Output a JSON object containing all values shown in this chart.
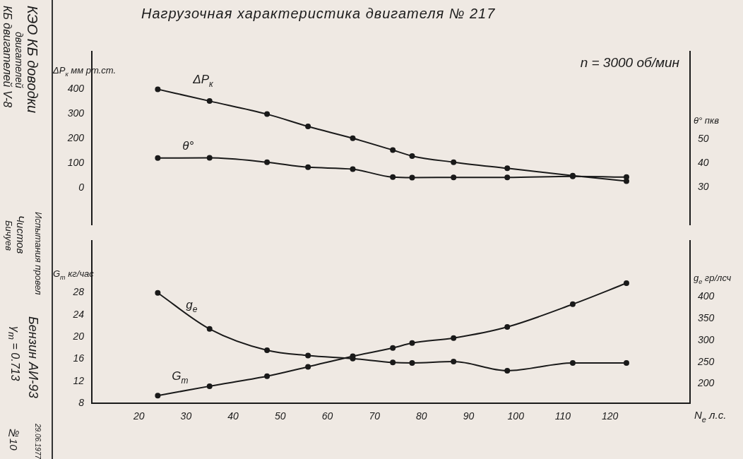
{
  "chart_data": [
    {
      "type": "line",
      "title": "Нагрузочная характеристика двигателя № 217",
      "ylabel": "ΔP$_{к}$ мм рт.ст.",
      "y2label": "θ° пкв",
      "x": [
        24,
        35,
        47.2,
        55.9,
        65.4,
        73.9,
        78,
        86.8,
        98.2,
        112.1,
        123.5
      ],
      "xlim": [
        10,
        137
      ],
      "tick_labels": "y",
      "ylim": [
        -151,
        553
      ],
      "yticks": [
        0,
        100,
        200,
        300,
        400
      ],
      "y2lim": [
        14.4,
        86.2
      ],
      "y2ticks": [
        30,
        40,
        50
      ],
      "series": [
        {
          "name": "ΔP$_{к}$",
          "color": "#1a1a1a",
          "values": [
            400,
            352,
            299,
            249,
            201,
            153,
            129,
            104,
            79,
            49,
            27
          ]
        },
        {
          "name": "θ°",
          "color": "#1a1a1a",
          "axis": "y2",
          "values": [
            42.1,
            42.2,
            40.4,
            38.3,
            37.5,
            34.2,
            34,
            34.1,
            34.1,
            34.5,
            34.2
          ]
        }
      ],
      "marker": "circle",
      "line_style": "solid",
      "annotations": [
        "n = 3000 об/мин",
        "КЭО КБ доводки",
        "двигателей",
        "КБ двигателей V-8",
        "Испытания провел",
        "Чистов",
        "Бичуев",
        "Бензин АИ-93",
        "γ$_{т}$ = 0.713",
        "29.06.1977",
        "№10"
      ]
    },
    {
      "type": "line",
      "xlabel": "N$_{e}$ л.с.",
      "ylabel": "G$_{т}$ кг/час",
      "y2label": "g$_{e}$ гр/лсч",
      "x": [
        24,
        35,
        47.2,
        55.9,
        65.4,
        73.9,
        78,
        86.8,
        98.2,
        112.1,
        123.5
      ],
      "xlim": [
        10,
        137
      ],
      "xticks": [
        20,
        30,
        40,
        50,
        60,
        70,
        80,
        90,
        100,
        110,
        120
      ],
      "ylim": [
        8,
        37.3
      ],
      "yticks": [
        8,
        12,
        16,
        20,
        24,
        28
      ],
      "y2lim": [
        155,
        528
      ],
      "y2ticks": [
        200,
        250,
        300,
        350,
        400
      ],
      "series": [
        {
          "name": "g$_{e}$",
          "color": "#1a1a1a",
          "axis": "y2",
          "values": [
            409,
            326,
            277,
            265,
            258,
            249,
            248,
            251,
            230,
            248,
            248
          ]
        },
        {
          "name": "G$_{т}$",
          "color": "#1a1a1a",
          "values": [
            9.4,
            11.1,
            12.9,
            14.6,
            16.5,
            18,
            18.9,
            19.8,
            21.8,
            25.9,
            29.7
          ]
        }
      ],
      "marker": "circle",
      "line_style": "solid"
    }
  ]
}
